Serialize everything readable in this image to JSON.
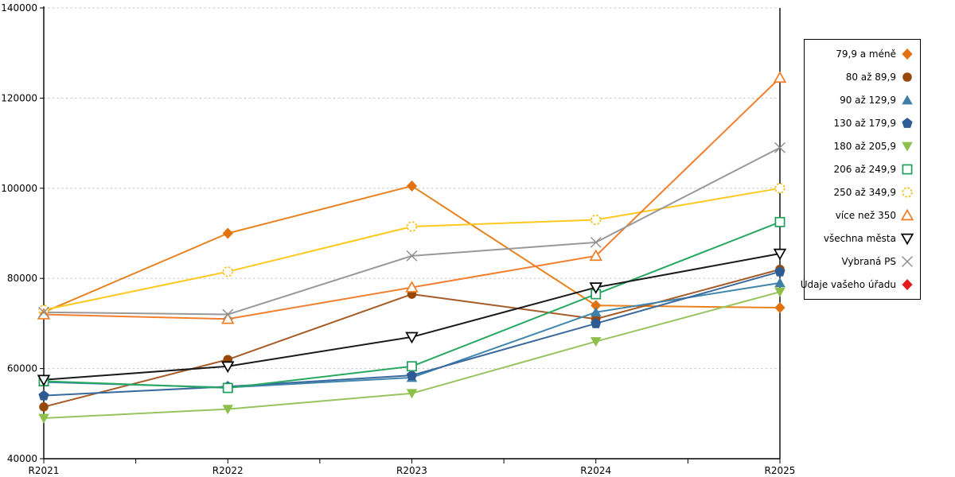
{
  "chart_data": {
    "type": "line",
    "title": "",
    "xlabel": "",
    "ylabel": "",
    "x_categories": [
      "R2021",
      "R2022",
      "R2023",
      "R2024",
      "R2025"
    ],
    "ylim": [
      40000,
      140000
    ],
    "yticks": [
      40000,
      60000,
      80000,
      100000,
      120000,
      140000
    ],
    "grid": "horizontal-dashed",
    "grid_color": "#bdbdbd",
    "axis_color": "#000000",
    "legend_position": "right-outside",
    "series": [
      {
        "name": "79,9 a méně",
        "color": "#E8821E",
        "marker_color": "#E2720F",
        "marker": "diamond",
        "fill": "solid",
        "values": [
          72500,
          90000,
          100500,
          74000,
          73500
        ]
      },
      {
        "name": "80 až 89,9",
        "color": "#A55C28",
        "marker_color": "#97490D",
        "marker": "circle",
        "fill": "solid",
        "values": [
          51500,
          62000,
          76500,
          71000,
          82000
        ]
      },
      {
        "name": "90 až 129,9",
        "color": "#4186AC",
        "marker_color": "#3F7FA6",
        "marker": "triangle-up",
        "fill": "solid",
        "values": [
          57000,
          55800,
          58000,
          72500,
          79000
        ]
      },
      {
        "name": "130 až 179,9",
        "color": "#3A699E",
        "marker_color": "#2F5B94",
        "marker": "pentagon",
        "fill": "solid",
        "values": [
          54000,
          56000,
          58500,
          70000,
          81500
        ]
      },
      {
        "name": "180 až 205,9",
        "color": "#97C45E",
        "marker_color": "#8DC04B",
        "marker": "triangle-down",
        "fill": "solid",
        "values": [
          49000,
          51000,
          54500,
          66000,
          77000
        ]
      },
      {
        "name": "206 až 249,9",
        "color": "#27A860",
        "marker_color": "#1FA05C",
        "marker": "square",
        "fill": "hollow",
        "values": [
          57200,
          55700,
          60500,
          76500,
          92500
        ]
      },
      {
        "name": "250 až 349,9",
        "color": "#FFC81E",
        "marker_color": "#F2BE1A",
        "marker": "circle-dashed",
        "fill": "hollow",
        "values": [
          73000,
          81500,
          91500,
          93000,
          100000
        ]
      },
      {
        "name": "více než 350",
        "color": "#F08030",
        "marker_color": "#F07D26",
        "marker": "triangle-up",
        "fill": "hollow",
        "values": [
          72000,
          71000,
          78000,
          85000,
          124500
        ]
      },
      {
        "name": "všechna města",
        "color": "#1A1A1A",
        "marker_color": "#000000",
        "marker": "triangle-down",
        "fill": "hollow",
        "values": [
          57500,
          60500,
          67000,
          78000,
          85500
        ]
      },
      {
        "name": "Vybraná PS",
        "color": "#999999",
        "marker_color": "#8C8C8C",
        "marker": "x",
        "fill": "line",
        "values": [
          72500,
          72000,
          85000,
          88000,
          109000
        ]
      },
      {
        "name": "Údaje vašeho úřadu",
        "color": "#E51A1A",
        "marker_color": "#E51A1A",
        "marker": "diamond",
        "fill": "solid",
        "values": []
      }
    ]
  }
}
